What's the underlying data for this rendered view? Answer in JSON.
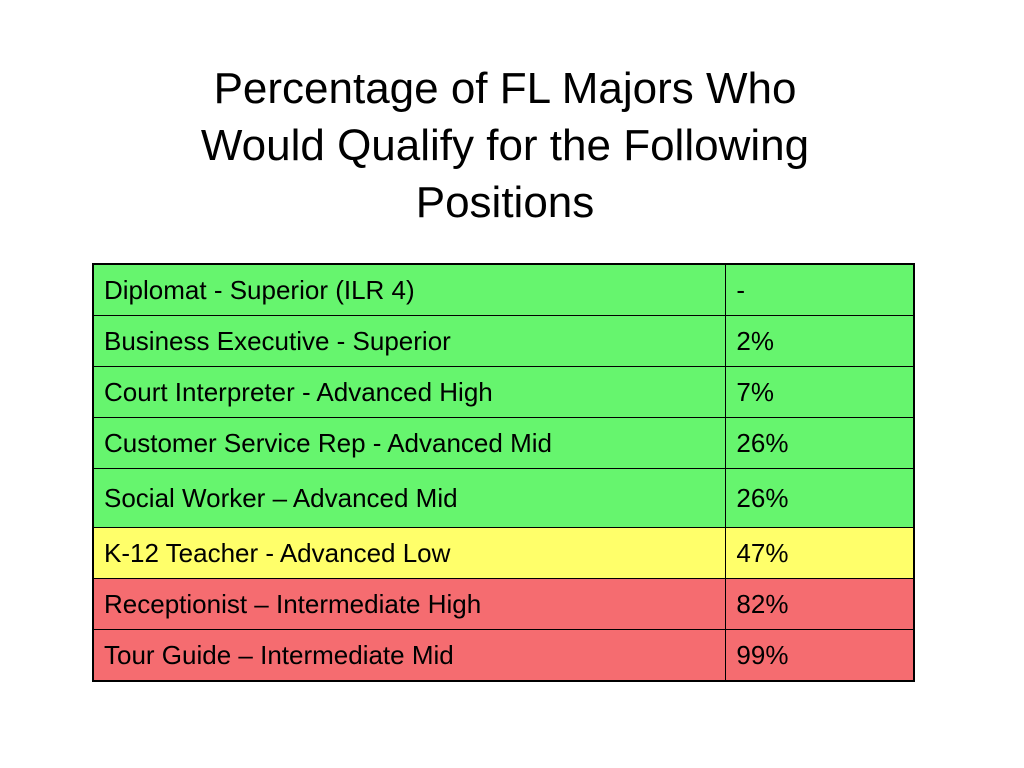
{
  "title": {
    "line1": "Percentage of FL Majors Who",
    "line2": "Would Qualify for the Following",
    "line3": "Positions"
  },
  "colors": {
    "green": "#66f56e",
    "yellow": "#ffff6a",
    "red": "#f56c70"
  },
  "table": {
    "rows": [
      {
        "position": "Diplomat - Superior (ILR 4)",
        "percent": "-",
        "color": "green"
      },
      {
        "position": "Business Executive - Superior",
        "percent": "2%",
        "color": "green"
      },
      {
        "position": "Court Interpreter - Advanced High",
        "percent": "7%",
        "color": "green"
      },
      {
        "position": "Customer Service Rep - Advanced Mid",
        "percent": "26%",
        "color": "green"
      },
      {
        "position": "Social Worker – Advanced Mid",
        "percent": "26%",
        "color": "green"
      },
      {
        "position": "K-12 Teacher - Advanced Low",
        "percent": "47%",
        "color": "yellow"
      },
      {
        "position": "Receptionist – Intermediate High",
        "percent": "82%",
        "color": "red"
      },
      {
        "position": "Tour Guide – Intermediate Mid",
        "percent": "99%",
        "color": "red"
      }
    ]
  }
}
